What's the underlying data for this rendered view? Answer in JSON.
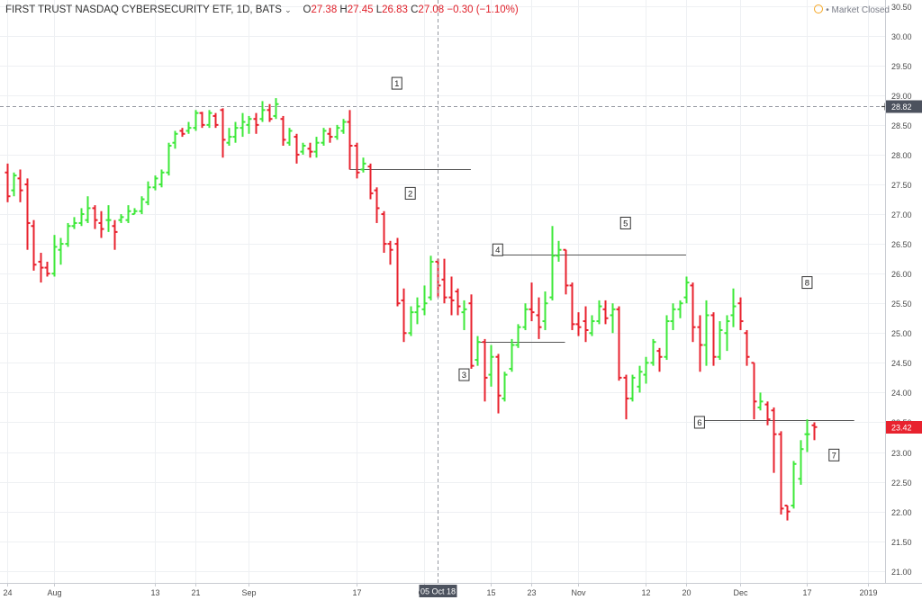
{
  "header": {
    "title": "FIRST TRUST NASDAQ CYBERSECURITY ETF, 1D, BATS",
    "o_label": "O",
    "o_value": "27.38",
    "h_label": "H",
    "h_value": "27.45",
    "l_label": "L",
    "l_value": "26.83",
    "c_label": "C",
    "c_value": "27.08",
    "change": "−0.30 (−1.10%)"
  },
  "status": {
    "text": "• Market Closed",
    "icon": "clock-icon"
  },
  "colors": {
    "up": "#3ee83a",
    "down": "#e8222e",
    "grid": "#eef0f3",
    "crosshair": "#9598a1",
    "annotation_line": "#555555"
  },
  "chart_data": {
    "type": "ohlc",
    "ylim": [
      20.8,
      30.6
    ],
    "yticks": [
      "21.00",
      "21.50",
      "22.00",
      "22.50",
      "23.00",
      "23.50",
      "24.00",
      "24.50",
      "25.00",
      "25.50",
      "26.00",
      "26.50",
      "27.00",
      "27.50",
      "28.00",
      "28.50",
      "29.00",
      "29.50",
      "30.00",
      "30.50"
    ],
    "xticks": [
      {
        "label": "24",
        "index": 0
      },
      {
        "label": "Aug",
        "index": 7
      },
      {
        "label": "13",
        "index": 22
      },
      {
        "label": "21",
        "index": 28
      },
      {
        "label": "Sep",
        "index": 36
      },
      {
        "label": "17",
        "index": 52
      },
      {
        "label": "Oct",
        "index": 62
      },
      {
        "label": "15",
        "index": 72
      },
      {
        "label": "23",
        "index": 78
      },
      {
        "label": "Nov",
        "index": 85
      },
      {
        "label": "12",
        "index": 95
      },
      {
        "label": "20",
        "index": 101
      },
      {
        "label": "Dec",
        "index": 109
      },
      {
        "label": "17",
        "index": 119
      },
      {
        "label": "2019",
        "index": 128
      }
    ],
    "crosshair": {
      "price": 28.82,
      "price_label": "28.82",
      "date_label": "05 Oct 18",
      "index": 64
    },
    "last_price": {
      "price": 23.42,
      "label": "23.42"
    },
    "bars": [
      {
        "o": 27.7,
        "h": 27.85,
        "l": 27.2,
        "c": 27.3
      },
      {
        "o": 27.4,
        "h": 27.7,
        "l": 27.3,
        "c": 27.65
      },
      {
        "o": 27.6,
        "h": 27.75,
        "l": 27.2,
        "c": 27.4
      },
      {
        "o": 27.5,
        "h": 27.6,
        "l": 26.4,
        "c": 26.85
      },
      {
        "o": 26.8,
        "h": 26.9,
        "l": 26.05,
        "c": 26.15
      },
      {
        "o": 26.2,
        "h": 26.35,
        "l": 25.85,
        "c": 26.1
      },
      {
        "o": 26.1,
        "h": 26.2,
        "l": 25.95,
        "c": 26.0
      },
      {
        "o": 26.0,
        "h": 26.65,
        "l": 25.95,
        "c": 26.45
      },
      {
        "o": 26.4,
        "h": 26.6,
        "l": 26.15,
        "c": 26.5
      },
      {
        "o": 26.5,
        "h": 26.85,
        "l": 26.45,
        "c": 26.8
      },
      {
        "o": 26.8,
        "h": 26.95,
        "l": 26.75,
        "c": 26.85
      },
      {
        "o": 26.85,
        "h": 27.1,
        "l": 26.8,
        "c": 27.0
      },
      {
        "o": 26.9,
        "h": 27.3,
        "l": 26.85,
        "c": 27.1
      },
      {
        "o": 27.1,
        "h": 27.15,
        "l": 26.75,
        "c": 26.9
      },
      {
        "o": 26.85,
        "h": 27.05,
        "l": 26.6,
        "c": 26.75
      },
      {
        "o": 26.9,
        "h": 27.15,
        "l": 26.7,
        "c": 26.9
      },
      {
        "o": 26.8,
        "h": 26.9,
        "l": 26.4,
        "c": 26.7
      },
      {
        "o": 26.9,
        "h": 27.0,
        "l": 26.85,
        "c": 26.95
      },
      {
        "o": 26.9,
        "h": 27.15,
        "l": 26.85,
        "c": 27.05
      },
      {
        "o": 27.0,
        "h": 27.1,
        "l": 27.0,
        "c": 27.05
      },
      {
        "o": 27.05,
        "h": 27.3,
        "l": 27.0,
        "c": 27.25
      },
      {
        "o": 27.2,
        "h": 27.55,
        "l": 27.15,
        "c": 27.45
      },
      {
        "o": 27.45,
        "h": 27.65,
        "l": 27.4,
        "c": 27.6
      },
      {
        "o": 27.5,
        "h": 27.75,
        "l": 27.45,
        "c": 27.7
      },
      {
        "o": 27.7,
        "h": 28.2,
        "l": 27.65,
        "c": 28.15
      },
      {
        "o": 28.2,
        "h": 28.4,
        "l": 28.1,
        "c": 28.35
      },
      {
        "o": 28.4,
        "h": 28.45,
        "l": 28.3,
        "c": 28.35
      },
      {
        "o": 28.4,
        "h": 28.55,
        "l": 28.35,
        "c": 28.45
      },
      {
        "o": 28.45,
        "h": 28.75,
        "l": 28.4,
        "c": 28.7
      },
      {
        "o": 28.7,
        "h": 28.72,
        "l": 28.45,
        "c": 28.5
      },
      {
        "o": 28.5,
        "h": 28.75,
        "l": 28.45,
        "c": 28.7
      },
      {
        "o": 28.65,
        "h": 28.7,
        "l": 28.45,
        "c": 28.5
      },
      {
        "o": 28.75,
        "h": 28.78,
        "l": 27.95,
        "c": 28.25
      },
      {
        "o": 28.2,
        "h": 28.45,
        "l": 28.15,
        "c": 28.3
      },
      {
        "o": 28.3,
        "h": 28.55,
        "l": 28.2,
        "c": 28.45
      },
      {
        "o": 28.45,
        "h": 28.7,
        "l": 28.3,
        "c": 28.55
      },
      {
        "o": 28.5,
        "h": 28.65,
        "l": 28.35,
        "c": 28.6
      },
      {
        "o": 28.6,
        "h": 28.7,
        "l": 28.35,
        "c": 28.5
      },
      {
        "o": 28.6,
        "h": 28.9,
        "l": 28.55,
        "c": 28.75
      },
      {
        "o": 28.75,
        "h": 28.85,
        "l": 28.55,
        "c": 28.6
      },
      {
        "o": 28.65,
        "h": 28.95,
        "l": 28.6,
        "c": 28.85
      },
      {
        "o": 28.6,
        "h": 28.65,
        "l": 28.15,
        "c": 28.25
      },
      {
        "o": 28.2,
        "h": 28.45,
        "l": 28.15,
        "c": 28.4
      },
      {
        "o": 28.3,
        "h": 28.35,
        "l": 27.85,
        "c": 28.0
      },
      {
        "o": 28.05,
        "h": 28.2,
        "l": 28.0,
        "c": 28.15
      },
      {
        "o": 28.1,
        "h": 28.2,
        "l": 27.95,
        "c": 28.05
      },
      {
        "o": 28.05,
        "h": 28.3,
        "l": 27.95,
        "c": 28.2
      },
      {
        "o": 28.2,
        "h": 28.45,
        "l": 28.15,
        "c": 28.4
      },
      {
        "o": 28.35,
        "h": 28.45,
        "l": 28.2,
        "c": 28.3
      },
      {
        "o": 28.3,
        "h": 28.5,
        "l": 28.25,
        "c": 28.45
      },
      {
        "o": 28.4,
        "h": 28.6,
        "l": 28.35,
        "c": 28.55
      },
      {
        "o": 28.55,
        "h": 28.75,
        "l": 27.75,
        "c": 28.15
      },
      {
        "o": 28.15,
        "h": 28.2,
        "l": 27.6,
        "c": 27.7
      },
      {
        "o": 27.75,
        "h": 27.95,
        "l": 27.7,
        "c": 27.85
      },
      {
        "o": 27.8,
        "h": 27.85,
        "l": 27.25,
        "c": 27.35
      },
      {
        "o": 27.4,
        "h": 27.45,
        "l": 26.85,
        "c": 27.1
      },
      {
        "o": 27.0,
        "h": 27.05,
        "l": 26.35,
        "c": 26.5
      },
      {
        "o": 26.5,
        "h": 26.55,
        "l": 26.15,
        "c": 26.4
      },
      {
        "o": 26.5,
        "h": 26.6,
        "l": 25.45,
        "c": 25.5
      },
      {
        "o": 25.55,
        "h": 25.75,
        "l": 24.85,
        "c": 25.0
      },
      {
        "o": 25.0,
        "h": 25.45,
        "l": 24.95,
        "c": 25.35
      },
      {
        "o": 25.35,
        "h": 25.6,
        "l": 25.15,
        "c": 25.45
      },
      {
        "o": 25.4,
        "h": 25.8,
        "l": 25.3,
        "c": 25.5
      },
      {
        "o": 25.6,
        "h": 26.3,
        "l": 25.55,
        "c": 26.2
      },
      {
        "o": 26.2,
        "h": 26.25,
        "l": 25.6,
        "c": 25.8
      },
      {
        "o": 25.9,
        "h": 26.25,
        "l": 25.5,
        "c": 25.6
      },
      {
        "o": 25.6,
        "h": 25.95,
        "l": 25.3,
        "c": 25.55
      },
      {
        "o": 25.7,
        "h": 25.75,
        "l": 25.3,
        "c": 25.45
      },
      {
        "o": 25.35,
        "h": 25.55,
        "l": 25.05,
        "c": 25.4
      },
      {
        "o": 25.5,
        "h": 25.65,
        "l": 24.4,
        "c": 24.45
      },
      {
        "o": 24.55,
        "h": 24.95,
        "l": 24.45,
        "c": 24.85
      },
      {
        "o": 24.85,
        "h": 24.9,
        "l": 23.85,
        "c": 24.25
      },
      {
        "o": 24.3,
        "h": 24.8,
        "l": 24.1,
        "c": 24.6
      },
      {
        "o": 24.6,
        "h": 24.65,
        "l": 23.65,
        "c": 23.95
      },
      {
        "o": 23.9,
        "h": 24.35,
        "l": 23.85,
        "c": 24.3
      },
      {
        "o": 24.4,
        "h": 24.9,
        "l": 24.35,
        "c": 24.8
      },
      {
        "o": 24.8,
        "h": 25.15,
        "l": 24.75,
        "c": 25.1
      },
      {
        "o": 25.1,
        "h": 25.5,
        "l": 25.05,
        "c": 25.4
      },
      {
        "o": 25.4,
        "h": 25.85,
        "l": 25.2,
        "c": 25.35
      },
      {
        "o": 25.3,
        "h": 25.6,
        "l": 24.9,
        "c": 25.1
      },
      {
        "o": 25.2,
        "h": 25.7,
        "l": 25.05,
        "c": 25.5
      },
      {
        "o": 25.6,
        "h": 26.8,
        "l": 25.55,
        "c": 26.3
      },
      {
        "o": 26.3,
        "h": 26.55,
        "l": 26.2,
        "c": 26.4
      },
      {
        "o": 26.4,
        "h": 26.4,
        "l": 25.65,
        "c": 25.8
      },
      {
        "o": 25.8,
        "h": 25.85,
        "l": 25.05,
        "c": 25.15
      },
      {
        "o": 25.15,
        "h": 25.35,
        "l": 24.95,
        "c": 25.1
      },
      {
        "o": 25.2,
        "h": 25.45,
        "l": 24.85,
        "c": 25.05
      },
      {
        "o": 25.0,
        "h": 25.3,
        "l": 24.95,
        "c": 25.2
      },
      {
        "o": 25.2,
        "h": 25.55,
        "l": 25.15,
        "c": 25.45
      },
      {
        "o": 25.4,
        "h": 25.55,
        "l": 25.15,
        "c": 25.25
      },
      {
        "o": 25.3,
        "h": 25.5,
        "l": 25.0,
        "c": 25.4
      },
      {
        "o": 25.4,
        "h": 25.45,
        "l": 24.2,
        "c": 24.25
      },
      {
        "o": 24.25,
        "h": 24.3,
        "l": 23.55,
        "c": 23.9
      },
      {
        "o": 23.9,
        "h": 24.3,
        "l": 23.85,
        "c": 24.25
      },
      {
        "o": 24.1,
        "h": 24.45,
        "l": 24.0,
        "c": 24.35
      },
      {
        "o": 24.3,
        "h": 24.6,
        "l": 24.15,
        "c": 24.5
      },
      {
        "o": 24.5,
        "h": 24.9,
        "l": 24.45,
        "c": 24.85
      },
      {
        "o": 24.7,
        "h": 24.75,
        "l": 24.35,
        "c": 24.6
      },
      {
        "o": 24.6,
        "h": 25.3,
        "l": 24.55,
        "c": 25.2
      },
      {
        "o": 25.2,
        "h": 25.5,
        "l": 25.05,
        "c": 25.4
      },
      {
        "o": 25.4,
        "h": 25.55,
        "l": 25.25,
        "c": 25.5
      },
      {
        "o": 25.6,
        "h": 25.95,
        "l": 25.5,
        "c": 25.85
      },
      {
        "o": 25.8,
        "h": 25.85,
        "l": 24.85,
        "c": 25.1
      },
      {
        "o": 25.1,
        "h": 25.3,
        "l": 24.35,
        "c": 24.8
      },
      {
        "o": 24.8,
        "h": 25.55,
        "l": 24.45,
        "c": 25.3
      },
      {
        "o": 25.3,
        "h": 25.35,
        "l": 24.45,
        "c": 24.6
      },
      {
        "o": 24.6,
        "h": 25.2,
        "l": 24.55,
        "c": 25.05
      },
      {
        "o": 25.0,
        "h": 25.3,
        "l": 24.7,
        "c": 25.2
      },
      {
        "o": 25.3,
        "h": 25.75,
        "l": 25.1,
        "c": 25.45
      },
      {
        "o": 25.5,
        "h": 25.6,
        "l": 25.05,
        "c": 25.2
      },
      {
        "o": 25.0,
        "h": 25.05,
        "l": 24.45,
        "c": 24.6
      },
      {
        "o": 24.5,
        "h": 24.5,
        "l": 23.55,
        "c": 23.85
      },
      {
        "o": 23.75,
        "h": 24.0,
        "l": 23.7,
        "c": 23.85
      },
      {
        "o": 23.8,
        "h": 23.85,
        "l": 23.45,
        "c": 23.55
      },
      {
        "o": 23.7,
        "h": 23.75,
        "l": 22.65,
        "c": 23.3
      },
      {
        "o": 23.3,
        "h": 23.35,
        "l": 21.95,
        "c": 22.05
      },
      {
        "o": 22.1,
        "h": 22.1,
        "l": 21.85,
        "c": 22.0
      },
      {
        "o": 22.1,
        "h": 22.85,
        "l": 22.05,
        "c": 22.8
      },
      {
        "o": 22.55,
        "h": 23.2,
        "l": 22.45,
        "c": 23.05
      },
      {
        "o": 23.3,
        "h": 23.55,
        "l": 23.0,
        "c": 23.3
      },
      {
        "o": 23.45,
        "h": 23.5,
        "l": 23.2,
        "c": 23.42
      }
    ],
    "hlines": [
      {
        "price": 27.75,
        "from": 51,
        "to": 69
      },
      {
        "price": 26.32,
        "from": 72,
        "to": 101
      },
      {
        "price": 24.85,
        "from": 70,
        "to": 83
      },
      {
        "price": 23.53,
        "from": 103,
        "to": 126
      }
    ],
    "annotations": [
      {
        "label": "1",
        "index": 58,
        "price": 29.2
      },
      {
        "label": "2",
        "index": 60,
        "price": 27.35
      },
      {
        "label": "3",
        "index": 68,
        "price": 24.3
      },
      {
        "label": "4",
        "index": 73,
        "price": 26.4
      },
      {
        "label": "5",
        "index": 92,
        "price": 26.85
      },
      {
        "label": "6",
        "index": 103,
        "price": 23.5
      },
      {
        "label": "7",
        "index": 123,
        "price": 22.95
      },
      {
        "label": "8",
        "index": 119,
        "price": 25.85
      }
    ]
  }
}
